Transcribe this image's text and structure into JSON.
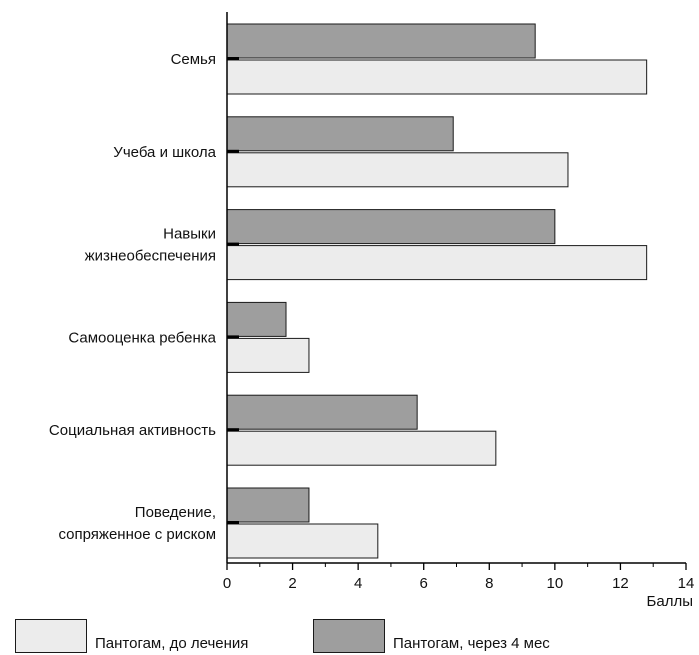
{
  "chart_data": {
    "type": "bar",
    "orientation": "horizontal",
    "categories": [
      "Семья",
      "Учеба и школа",
      "Навыки жизнеобеспечения",
      "Самооценка ребенка",
      "Социальная активность",
      "Поведение, сопряженное с риском"
    ],
    "category_lines": [
      [
        "Семья"
      ],
      [
        "Учеба и школа"
      ],
      [
        "Навыки",
        "жизнеобеспечения"
      ],
      [
        "Самооценка ребенка"
      ],
      [
        "Социальная активность"
      ],
      [
        "Поведение,",
        "сопряженное с риском"
      ]
    ],
    "series": [
      {
        "name": "Пантогам, через 4 мес",
        "color": "#9e9e9e",
        "values": [
          9.4,
          6.9,
          10.0,
          1.8,
          5.8,
          2.5
        ]
      },
      {
        "name": "Пантогам, до лечения",
        "color": "#ececec",
        "values": [
          12.8,
          10.4,
          12.8,
          2.5,
          8.2,
          4.6
        ]
      }
    ],
    "xlabel": "Баллы",
    "ylabel": "",
    "xlim": [
      0,
      14
    ],
    "ticks": [
      0,
      2,
      4,
      6,
      8,
      10,
      12,
      14
    ],
    "grid": false,
    "legend_placement": "bottom"
  },
  "legend": {
    "items": [
      {
        "label": "Пантогам, до лечения",
        "color": "#ececec"
      },
      {
        "label": "Пантогам, через 4 мес",
        "color": "#9e9e9e"
      }
    ]
  }
}
